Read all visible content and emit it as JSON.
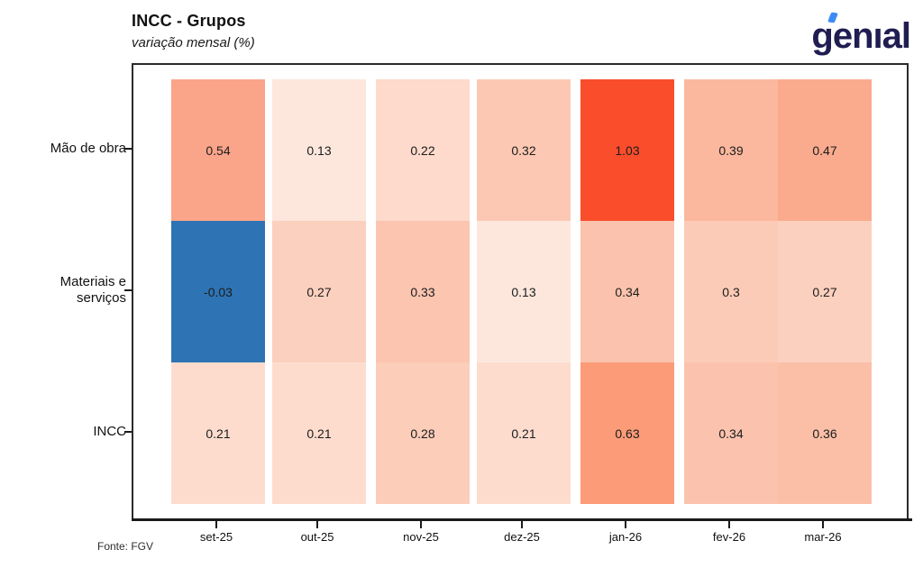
{
  "header": {
    "title": "INCC - Grupos",
    "subtitle": "variação mensal (%)",
    "logo": {
      "text": "genıal",
      "color": "#201d52",
      "accent_color": "#3d8af7"
    }
  },
  "footer": {
    "source": "Fonte: FGV"
  },
  "chart_data": {
    "type": "heatmap",
    "title": "INCC - Grupos",
    "subtitle": "variação mensal (%)",
    "x_categories": [
      "set-25",
      "out-25",
      "nov-25",
      "dez-25",
      "jan-26",
      "fev-26",
      "mar-26"
    ],
    "y_categories": [
      "Mão de obra",
      "Materiais e\nserviços",
      "INCC"
    ],
    "values": [
      [
        0.54,
        0.13,
        0.22,
        0.32,
        1.03,
        0.39,
        0.47
      ],
      [
        -0.03,
        0.27,
        0.33,
        0.13,
        0.34,
        0.3,
        0.27
      ],
      [
        0.21,
        0.21,
        0.28,
        0.21,
        0.63,
        0.34,
        0.36
      ]
    ],
    "labels": [
      [
        "0.54",
        "0.13",
        "0.22",
        "0.32",
        "1.03",
        "0.39",
        "0.47"
      ],
      [
        "-0.03",
        "0.27",
        "0.33",
        "0.13",
        "0.34",
        "0.3",
        "0.27"
      ],
      [
        "0.21",
        "0.21",
        "0.28",
        "0.21",
        "0.63",
        "0.34",
        "0.36"
      ]
    ],
    "cell_colors": [
      [
        "#faa489",
        "#fde7dd",
        "#fddacb",
        "#fcc8b3",
        "#f94d2b",
        "#fbb89e",
        "#faab8e"
      ],
      [
        "#2e74b4",
        "#fcd0be",
        "#fcc5b0",
        "#fde7dd",
        "#fbc3ad",
        "#fccbb7",
        "#fcd0be"
      ],
      [
        "#fddcce",
        "#fddcce",
        "#fccdb9",
        "#fddcce",
        "#fb9b78",
        "#fbc3ad",
        "#fbbfa7"
      ]
    ],
    "palette": {
      "negative_color": "#2e74b4",
      "zero_color": "#fff5f0",
      "max_color": "#f94d2b"
    },
    "legend": "none",
    "grid": "off",
    "source": "Fonte: FGV"
  }
}
